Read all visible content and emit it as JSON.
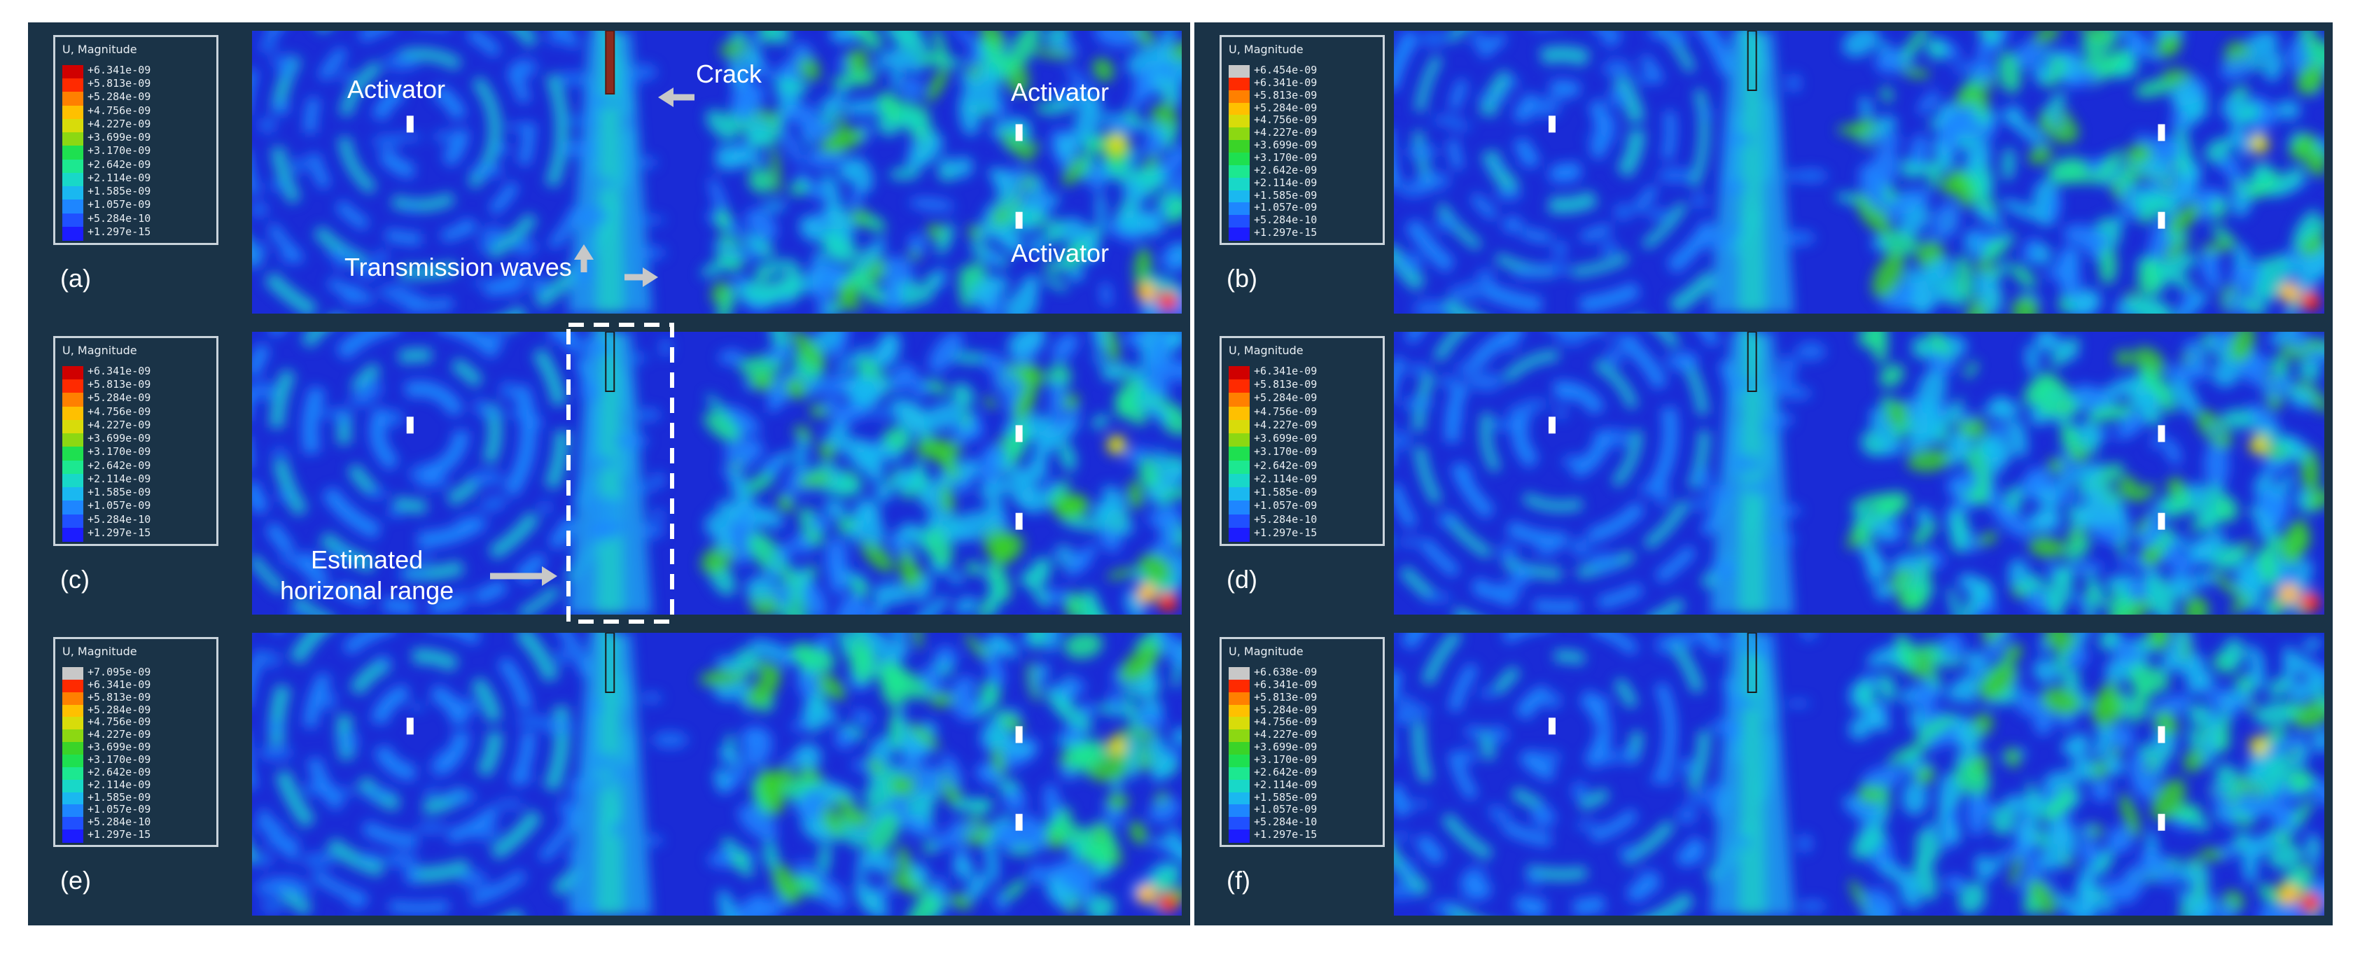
{
  "legend_title": "U, Magnitude",
  "colors": {
    "scale": [
      "#1c1cff",
      "#2050ff",
      "#1e86ff",
      "#1ab8f0",
      "#18d8c8",
      "#1ce890",
      "#1ee050",
      "#3ad428",
      "#8cd812",
      "#d8dc0a",
      "#ffc000",
      "#ff8000",
      "#ff2a00",
      "#d00000"
    ],
    "background_panel": "#1a3347",
    "field_base": "#1a2bd6",
    "annotation_arrow": "#c8c8c8",
    "crack": "#8b2b1e"
  },
  "panels": [
    {
      "label": "(a)",
      "legend": [
        "+6.341e-09",
        "+5.813e-09",
        "+5.284e-09",
        "+4.756e-09",
        "+4.227e-09",
        "+3.699e-09",
        "+3.170e-09",
        "+2.642e-09",
        "+2.114e-09",
        "+1.585e-09",
        "+1.057e-09",
        "+5.284e-10",
        "+1.297e-15"
      ]
    },
    {
      "label": "(b)",
      "legend": [
        "+6.454e-09",
        "+6.341e-09",
        "+5.813e-09",
        "+5.284e-09",
        "+4.756e-09",
        "+4.227e-09",
        "+3.699e-09",
        "+3.170e-09",
        "+2.642e-09",
        "+2.114e-09",
        "+1.585e-09",
        "+1.057e-09",
        "+5.284e-10",
        "+1.297e-15"
      ]
    },
    {
      "label": "(c)",
      "legend": [
        "+6.341e-09",
        "+5.813e-09",
        "+5.284e-09",
        "+4.756e-09",
        "+4.227e-09",
        "+3.699e-09",
        "+3.170e-09",
        "+2.642e-09",
        "+2.114e-09",
        "+1.585e-09",
        "+1.057e-09",
        "+5.284e-10",
        "+1.297e-15"
      ]
    },
    {
      "label": "(d)",
      "legend": [
        "+6.341e-09",
        "+5.813e-09",
        "+5.284e-09",
        "+4.756e-09",
        "+4.227e-09",
        "+3.699e-09",
        "+3.170e-09",
        "+2.642e-09",
        "+2.114e-09",
        "+1.585e-09",
        "+1.057e-09",
        "+5.284e-10",
        "+1.297e-15"
      ]
    },
    {
      "label": "(e)",
      "legend": [
        "+7.095e-09",
        "+6.341e-09",
        "+5.813e-09",
        "+5.284e-09",
        "+4.756e-09",
        "+4.227e-09",
        "+3.699e-09",
        "+3.170e-09",
        "+2.642e-09",
        "+2.114e-09",
        "+1.585e-09",
        "+1.057e-09",
        "+5.284e-10",
        "+1.297e-15"
      ]
    },
    {
      "label": "(f)",
      "legend": [
        "+6.638e-09",
        "+6.341e-09",
        "+5.813e-09",
        "+5.284e-09",
        "+4.756e-09",
        "+4.227e-09",
        "+3.699e-09",
        "+3.170e-09",
        "+2.642e-09",
        "+2.114e-09",
        "+1.585e-09",
        "+1.057e-09",
        "+5.284e-10",
        "+1.297e-15"
      ]
    }
  ],
  "annotations": {
    "activator": "Activator",
    "crack": "Crack",
    "transmission_waves": "Transmission waves",
    "estimated_range": "Estimated\nhorizonal range"
  }
}
